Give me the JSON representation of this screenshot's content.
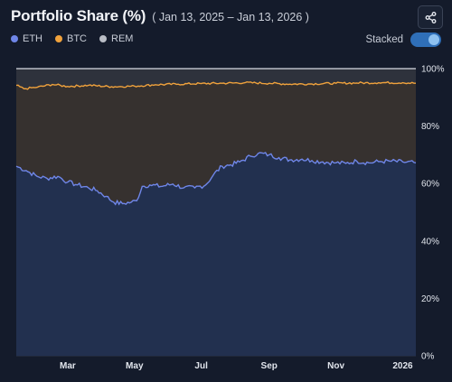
{
  "header": {
    "title": "Portfolio Share (%)",
    "range": "( Jan 13, 2025 – Jan 13, 2026 )"
  },
  "legend": [
    {
      "label": "ETH",
      "color": "#6f86e8"
    },
    {
      "label": "BTC",
      "color": "#f0a23c"
    },
    {
      "label": "REM",
      "color": "#b9bdc5"
    }
  ],
  "controls": {
    "stacked_label": "Stacked",
    "stacked_on": true,
    "share_icon": "share-icon"
  },
  "chart_data": {
    "type": "area",
    "stacked": true,
    "x_start": "2025-01-13",
    "x_end": "2026-01-13",
    "ylim": [
      0,
      100
    ],
    "y_ticks": [
      "0%",
      "20%",
      "40%",
      "60%",
      "80%",
      "100%"
    ],
    "x_tick_dates": [
      "2025-03-01",
      "2025-05-01",
      "2025-07-01",
      "2025-09-01",
      "2025-11-01",
      "2026-01-01"
    ],
    "x_ticks": [
      "Mar",
      "May",
      "Jul",
      "Sep",
      "Nov",
      "2026"
    ],
    "grid": true,
    "legend_position": "top-left",
    "series": [
      {
        "name": "ETH",
        "color": "#6f86e8",
        "points": [
          [
            "2025-01-13",
            66
          ],
          [
            "2025-01-22",
            64.5
          ],
          [
            "2025-02-01",
            62.5
          ],
          [
            "2025-02-10",
            61.8
          ],
          [
            "2025-02-20",
            62.5
          ],
          [
            "2025-03-01",
            60.5
          ],
          [
            "2025-03-10",
            59.5
          ],
          [
            "2025-03-20",
            58.5
          ],
          [
            "2025-03-28",
            57.5
          ],
          [
            "2025-04-05",
            55.5
          ],
          [
            "2025-04-12",
            53.5
          ],
          [
            "2025-04-20",
            53
          ],
          [
            "2025-04-28",
            53.5
          ],
          [
            "2025-05-03",
            54
          ],
          [
            "2025-05-08",
            59
          ],
          [
            "2025-05-15",
            59.5
          ],
          [
            "2025-05-25",
            59
          ],
          [
            "2025-06-05",
            59.8
          ],
          [
            "2025-06-15",
            58.5
          ],
          [
            "2025-06-25",
            58.5
          ],
          [
            "2025-07-05",
            59.5
          ],
          [
            "2025-07-12",
            63
          ],
          [
            "2025-07-20",
            66
          ],
          [
            "2025-07-28",
            66.5
          ],
          [
            "2025-08-05",
            67.5
          ],
          [
            "2025-08-15",
            69.5
          ],
          [
            "2025-08-22",
            70.5
          ],
          [
            "2025-09-01",
            70
          ],
          [
            "2025-09-10",
            69
          ],
          [
            "2025-09-20",
            68.2
          ],
          [
            "2025-10-01",
            68.5
          ],
          [
            "2025-10-10",
            68
          ],
          [
            "2025-10-20",
            67.5
          ],
          [
            "2025-11-01",
            67.2
          ],
          [
            "2025-11-10",
            67
          ],
          [
            "2025-11-20",
            67.8
          ],
          [
            "2025-12-01",
            67.2
          ],
          [
            "2025-12-10",
            67.6
          ],
          [
            "2025-12-20",
            67.8
          ],
          [
            "2026-01-01",
            67.5
          ],
          [
            "2026-01-13",
            67.2
          ]
        ]
      },
      {
        "name": "BTC",
        "color": "#f0a23c",
        "points": [
          [
            "2025-01-13",
            94.2
          ],
          [
            "2025-01-20",
            93
          ],
          [
            "2025-02-01",
            93.5
          ],
          [
            "2025-02-15",
            94.5
          ],
          [
            "2025-03-01",
            93.8
          ],
          [
            "2025-03-20",
            94.2
          ],
          [
            "2025-04-10",
            93.7
          ],
          [
            "2025-05-01",
            93.9
          ],
          [
            "2025-05-20",
            94.4
          ],
          [
            "2025-06-10",
            94.6
          ],
          [
            "2025-07-01",
            94.8
          ],
          [
            "2025-07-20",
            94.9
          ],
          [
            "2025-08-10",
            95.1
          ],
          [
            "2025-09-01",
            94.9
          ],
          [
            "2025-09-20",
            94.6
          ],
          [
            "2025-10-10",
            94.7
          ],
          [
            "2025-11-01",
            94.9
          ],
          [
            "2025-11-20",
            95.0
          ],
          [
            "2025-12-10",
            95.1
          ],
          [
            "2026-01-01",
            95.1
          ],
          [
            "2026-01-13",
            94.9
          ]
        ]
      },
      {
        "name": "REM",
        "color": "#b9bdc5",
        "points": [
          [
            "2025-01-13",
            100
          ],
          [
            "2026-01-13",
            100
          ]
        ]
      }
    ]
  }
}
